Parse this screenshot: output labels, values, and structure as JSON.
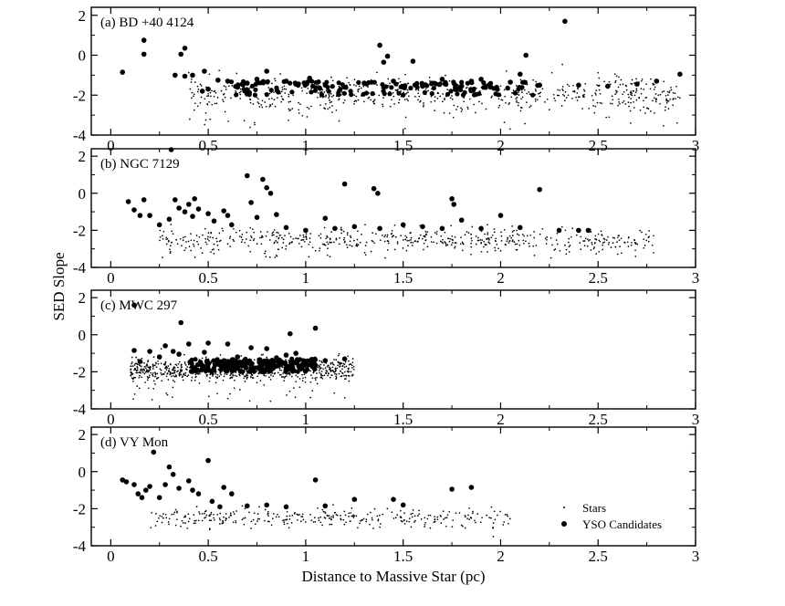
{
  "chart_data": {
    "type": "scatter",
    "xlabel": "Distance to Massive Star (pc)",
    "ylabel": "SED Slope",
    "xlim": [
      -0.1,
      3.0
    ],
    "ylim": [
      -4,
      2.4
    ],
    "x_ticks": [
      0,
      0.5,
      1,
      1.5,
      2,
      2.5,
      3
    ],
    "x_tick_labels": [
      "0",
      "0.5",
      "1",
      "1.5",
      "2",
      "2.5",
      "3"
    ],
    "y_ticks": [
      -4,
      -2,
      0,
      2
    ],
    "y_tick_labels": [
      "-4",
      "-2",
      "0",
      "2"
    ],
    "grid": false,
    "legend": {
      "placement": "bottom-right",
      "entries": [
        {
          "name": "Stars",
          "marker": "small-dot"
        },
        {
          "name": "YSO Candidates",
          "marker": "large-dot"
        }
      ]
    },
    "panels": [
      {
        "label": "(a) BD +40 4124",
        "stars_cloud": {
          "x_range": [
            0.38,
            2.92
          ],
          "y_center": -1.95,
          "y_spread": 0.45,
          "approx_count": 680,
          "lower_outliers_to": -3.8
        },
        "yso": [
          [
            0.06,
            -0.85
          ],
          [
            0.17,
            0.75
          ],
          [
            0.17,
            0.05
          ],
          [
            0.33,
            -1.0
          ],
          [
            0.36,
            0.05
          ],
          [
            0.38,
            0.35
          ],
          [
            0.38,
            -1.05
          ],
          [
            0.42,
            -1.0
          ],
          [
            0.47,
            -1.8
          ],
          [
            0.48,
            -0.8
          ],
          [
            0.5,
            -1.7
          ],
          [
            0.55,
            -1.25
          ],
          [
            0.6,
            -1.3
          ],
          [
            0.65,
            -1.6
          ],
          [
            0.7,
            -1.4
          ],
          [
            0.75,
            -1.2
          ],
          [
            0.8,
            -0.8
          ],
          [
            0.9,
            -1.3
          ],
          [
            0.95,
            -1.45
          ],
          [
            1.02,
            -1.15
          ],
          [
            1.1,
            -1.5
          ],
          [
            1.2,
            -1.6
          ],
          [
            1.3,
            -1.4
          ],
          [
            1.38,
            0.5
          ],
          [
            1.4,
            -0.35
          ],
          [
            1.42,
            -0.05
          ],
          [
            1.45,
            -1.3
          ],
          [
            1.5,
            -1.6
          ],
          [
            1.55,
            -0.3
          ],
          [
            1.6,
            -1.55
          ],
          [
            1.7,
            -1.2
          ],
          [
            1.8,
            -1.55
          ],
          [
            1.85,
            -1.3
          ],
          [
            1.9,
            -1.2
          ],
          [
            1.95,
            -1.6
          ],
          [
            2.05,
            -1.35
          ],
          [
            2.1,
            -0.95
          ],
          [
            2.13,
            0.0
          ],
          [
            2.2,
            -1.5
          ],
          [
            2.33,
            1.7
          ],
          [
            2.4,
            -1.5
          ],
          [
            2.55,
            -1.55
          ],
          [
            2.7,
            -1.45
          ],
          [
            2.8,
            -1.3
          ],
          [
            2.92,
            -0.95
          ]
        ],
        "yso_dense_band": {
          "x_range": [
            0.6,
            2.2
          ],
          "y_range": [
            -2.0,
            -1.3
          ],
          "approx_count": 150
        }
      },
      {
        "label": "(b) NGC 7129",
        "stars_cloud": {
          "x_range": [
            0.25,
            2.8
          ],
          "y_center": -2.5,
          "y_spread": 0.3,
          "approx_count": 560,
          "lower_outliers_to": -3.5
        },
        "yso": [
          [
            0.09,
            -0.45
          ],
          [
            0.12,
            -0.9
          ],
          [
            0.15,
            -1.2
          ],
          [
            0.17,
            -0.35
          ],
          [
            0.2,
            -1.2
          ],
          [
            0.25,
            -1.7
          ],
          [
            0.3,
            -1.4
          ],
          [
            0.31,
            2.35
          ],
          [
            0.33,
            -0.35
          ],
          [
            0.35,
            -0.8
          ],
          [
            0.38,
            -1.0
          ],
          [
            0.4,
            -0.6
          ],
          [
            0.42,
            -1.25
          ],
          [
            0.43,
            -0.3
          ],
          [
            0.45,
            -0.85
          ],
          [
            0.5,
            -1.1
          ],
          [
            0.53,
            -1.5
          ],
          [
            0.58,
            -0.95
          ],
          [
            0.6,
            -1.2
          ],
          [
            0.62,
            -1.7
          ],
          [
            0.7,
            0.95
          ],
          [
            0.72,
            -0.5
          ],
          [
            0.75,
            -1.3
          ],
          [
            0.78,
            0.75
          ],
          [
            0.8,
            0.3
          ],
          [
            0.82,
            0.0
          ],
          [
            0.85,
            -1.15
          ],
          [
            0.9,
            -1.85
          ],
          [
            1.0,
            -2.0
          ],
          [
            1.1,
            -1.35
          ],
          [
            1.15,
            -1.9
          ],
          [
            1.2,
            0.5
          ],
          [
            1.25,
            -1.8
          ],
          [
            1.35,
            0.25
          ],
          [
            1.37,
            0.0
          ],
          [
            1.38,
            -1.9
          ],
          [
            1.5,
            -1.7
          ],
          [
            1.6,
            -1.8
          ],
          [
            1.7,
            -1.9
          ],
          [
            1.75,
            -0.3
          ],
          [
            1.76,
            -0.6
          ],
          [
            1.8,
            -1.45
          ],
          [
            1.9,
            -1.9
          ],
          [
            2.0,
            -1.2
          ],
          [
            2.1,
            -1.85
          ],
          [
            2.2,
            0.2
          ],
          [
            2.3,
            -2.0
          ],
          [
            2.4,
            -2.0
          ],
          [
            2.45,
            -2.0
          ]
        ]
      },
      {
        "label": "(c) MWC 297",
        "stars_cloud": {
          "x_range": [
            0.1,
            1.25
          ],
          "y_center": -1.85,
          "y_spread": 0.3,
          "approx_count": 850,
          "lower_outliers_to": -3.6
        },
        "yso": [
          [
            0.12,
            1.6
          ],
          [
            0.12,
            -0.85
          ],
          [
            0.15,
            -1.45
          ],
          [
            0.2,
            -0.9
          ],
          [
            0.25,
            -1.2
          ],
          [
            0.28,
            -0.6
          ],
          [
            0.32,
            -0.9
          ],
          [
            0.35,
            -1.05
          ],
          [
            0.36,
            0.65
          ],
          [
            0.4,
            -0.5
          ],
          [
            0.45,
            -1.6
          ],
          [
            0.48,
            -0.95
          ],
          [
            0.5,
            -0.45
          ],
          [
            0.55,
            -1.5
          ],
          [
            0.6,
            -0.5
          ],
          [
            0.65,
            -1.2
          ],
          [
            0.72,
            -0.7
          ],
          [
            0.8,
            -0.75
          ],
          [
            0.85,
            -1.25
          ],
          [
            0.9,
            -1.1
          ],
          [
            0.92,
            0.05
          ],
          [
            0.95,
            -1.0
          ],
          [
            1.0,
            -1.45
          ],
          [
            1.05,
            0.35
          ],
          [
            1.1,
            -1.4
          ],
          [
            1.2,
            -1.3
          ]
        ],
        "yso_dense_band": {
          "x_range": [
            0.4,
            1.05
          ],
          "y_range": [
            -2.0,
            -1.3
          ],
          "approx_count": 230
        }
      },
      {
        "label": "(d) VY Mon",
        "stars_cloud": {
          "x_range": [
            0.2,
            2.05
          ],
          "y_center": -2.5,
          "y_spread": 0.25,
          "approx_count": 320,
          "lower_outliers_to": -3.0
        },
        "yso": [
          [
            0.06,
            -0.45
          ],
          [
            0.08,
            -0.55
          ],
          [
            0.12,
            -0.7
          ],
          [
            0.14,
            -1.2
          ],
          [
            0.16,
            -1.4
          ],
          [
            0.18,
            -1.0
          ],
          [
            0.2,
            -0.8
          ],
          [
            0.22,
            1.05
          ],
          [
            0.25,
            -1.4
          ],
          [
            0.28,
            -0.7
          ],
          [
            0.3,
            0.25
          ],
          [
            0.32,
            -0.15
          ],
          [
            0.35,
            -0.9
          ],
          [
            0.4,
            -0.5
          ],
          [
            0.42,
            -1.0
          ],
          [
            0.45,
            -1.2
          ],
          [
            0.5,
            0.6
          ],
          [
            0.52,
            -1.6
          ],
          [
            0.56,
            -1.9
          ],
          [
            0.58,
            -0.85
          ],
          [
            0.62,
            -1.2
          ],
          [
            0.7,
            -1.85
          ],
          [
            0.8,
            -1.8
          ],
          [
            0.9,
            -1.9
          ],
          [
            1.05,
            -0.45
          ],
          [
            1.1,
            -1.85
          ],
          [
            1.25,
            -1.5
          ],
          [
            1.45,
            -1.5
          ],
          [
            1.5,
            -1.8
          ],
          [
            1.75,
            -0.95
          ],
          [
            1.85,
            -0.85
          ]
        ]
      }
    ]
  }
}
